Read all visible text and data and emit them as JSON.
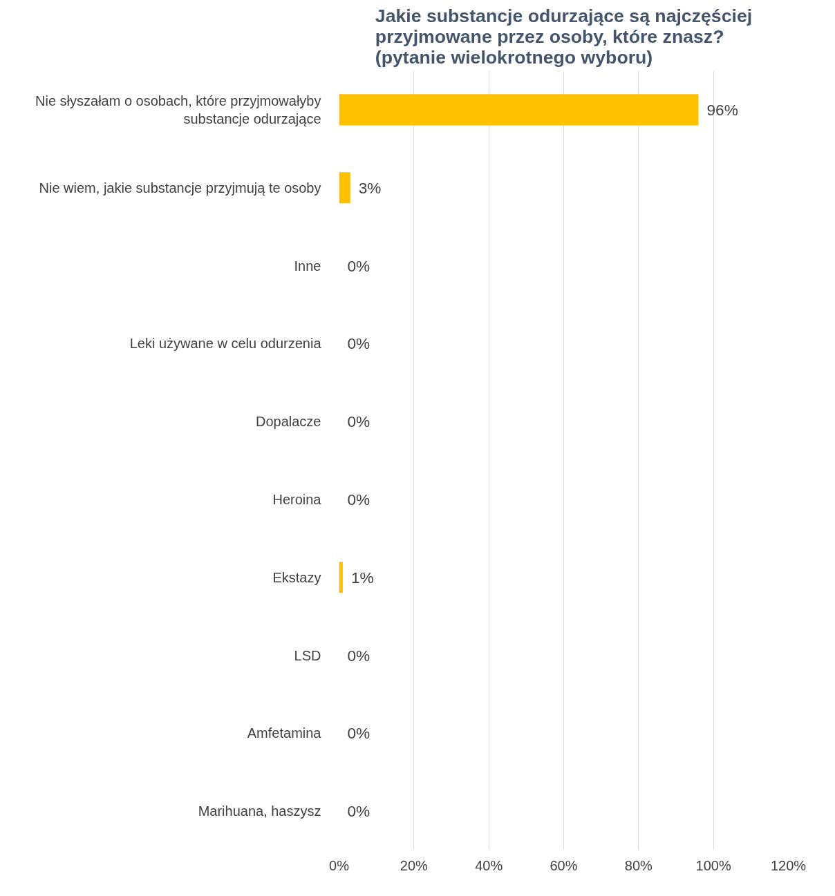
{
  "chart_data": {
    "type": "bar",
    "orientation": "horizontal",
    "title": "Jakie substancje odurzające są najczęściej\nprzyjmowane przez osoby, które znasz?\n(pytanie wielokrotnego wyboru)",
    "categories": [
      "Nie słyszałam o osobach, które przyjmowałyby\nsubstancje odurzające",
      "Nie wiem, jakie substancje przyjmują te osoby",
      "Inne",
      "Leki używane w celu odurzenia",
      "Dopalacze",
      "Heroina",
      "Ekstazy",
      "LSD",
      "Amfetamina",
      "Marihuana, haszysz"
    ],
    "values": [
      96,
      3,
      0,
      0,
      0,
      0,
      1,
      0,
      0,
      0
    ],
    "value_labels": [
      "96%",
      "3%",
      "0%",
      "0%",
      "0%",
      "0%",
      "1%",
      "0%",
      "0%",
      "0%"
    ],
    "color": "#ffc000",
    "xlim": [
      0,
      120
    ],
    "xticks": [
      {
        "value": 0,
        "label": "0%"
      },
      {
        "value": 20,
        "label": "20%"
      },
      {
        "value": 40,
        "label": "40%"
      },
      {
        "value": 60,
        "label": "60%"
      },
      {
        "value": 80,
        "label": "80%"
      },
      {
        "value": 100,
        "label": "100%"
      },
      {
        "value": 120,
        "label": "120%"
      }
    ],
    "grid": "x"
  }
}
